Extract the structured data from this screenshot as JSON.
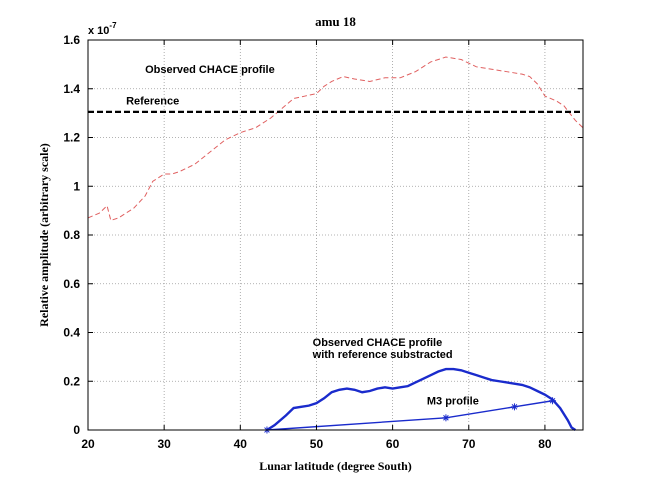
{
  "chart_data": {
    "type": "line",
    "title": "amu 18",
    "xlabel": "Lunar latitude (degree South)",
    "ylabel": "Relative amplitude (arbitrary scale)",
    "y_multiplier": "x 10",
    "y_exponent": "-7",
    "xlim": [
      20,
      85
    ],
    "ylim": [
      0,
      1.6
    ],
    "x_ticks": [
      20,
      30,
      40,
      50,
      60,
      70,
      80
    ],
    "y_ticks": [
      0,
      0.2,
      0.4,
      0.6,
      0.8,
      1,
      1.2,
      1.4,
      1.6
    ],
    "y_tick_labels": [
      "0",
      "0.2",
      "0.4",
      "0.6",
      "0.8",
      "1",
      "1.2",
      "1.4",
      "1.6"
    ],
    "grid": true,
    "colors": {
      "observed": "#e06060",
      "reference": "#000000",
      "subtracted": "#1a2bcc",
      "m3": "#1a2bcc"
    },
    "series": [
      {
        "key": "observed",
        "style": "dashed",
        "points": [
          [
            20,
            0.87
          ],
          [
            21.5,
            0.89
          ],
          [
            22.5,
            0.92
          ],
          [
            23,
            0.86
          ],
          [
            24,
            0.87
          ],
          [
            26,
            0.91
          ],
          [
            27.5,
            0.96
          ],
          [
            28.5,
            1.02
          ],
          [
            30,
            1.05
          ],
          [
            31,
            1.05
          ],
          [
            32,
            1.06
          ],
          [
            34,
            1.09
          ],
          [
            36,
            1.14
          ],
          [
            38,
            1.19
          ],
          [
            40,
            1.22
          ],
          [
            42,
            1.24
          ],
          [
            44,
            1.28
          ],
          [
            45.5,
            1.32
          ],
          [
            47,
            1.36
          ],
          [
            48.5,
            1.37
          ],
          [
            50,
            1.38
          ],
          [
            51,
            1.41
          ],
          [
            52,
            1.43
          ],
          [
            53.5,
            1.45
          ],
          [
            55,
            1.44
          ],
          [
            57,
            1.43
          ],
          [
            59,
            1.445
          ],
          [
            61,
            1.445
          ],
          [
            63,
            1.47
          ],
          [
            65,
            1.51
          ],
          [
            67,
            1.53
          ],
          [
            69,
            1.52
          ],
          [
            71,
            1.49
          ],
          [
            73,
            1.48
          ],
          [
            75,
            1.47
          ],
          [
            77,
            1.46
          ],
          [
            78,
            1.45
          ],
          [
            79,
            1.42
          ],
          [
            80,
            1.37
          ],
          [
            81.5,
            1.35
          ],
          [
            82.5,
            1.33
          ],
          [
            84,
            1.27
          ],
          [
            85,
            1.24
          ]
        ]
      },
      {
        "key": "reference",
        "style": "dashed",
        "points": [
          [
            20,
            1.305
          ],
          [
            85,
            1.305
          ]
        ]
      },
      {
        "key": "subtracted",
        "style": "solid",
        "points": [
          [
            43.5,
            0.0
          ],
          [
            44.5,
            0.02
          ],
          [
            46,
            0.06
          ],
          [
            47,
            0.09
          ],
          [
            48,
            0.095
          ],
          [
            49,
            0.1
          ],
          [
            50,
            0.11
          ],
          [
            51,
            0.13
          ],
          [
            52,
            0.155
          ],
          [
            53,
            0.165
          ],
          [
            54,
            0.17
          ],
          [
            55,
            0.165
          ],
          [
            56,
            0.155
          ],
          [
            57,
            0.16
          ],
          [
            58,
            0.17
          ],
          [
            59,
            0.175
          ],
          [
            60,
            0.17
          ],
          [
            61,
            0.175
          ],
          [
            62,
            0.18
          ],
          [
            63,
            0.195
          ],
          [
            64,
            0.21
          ],
          [
            65,
            0.225
          ],
          [
            66,
            0.24
          ],
          [
            67,
            0.25
          ],
          [
            68,
            0.25
          ],
          [
            69,
            0.245
          ],
          [
            70,
            0.235
          ],
          [
            71,
            0.225
          ],
          [
            72,
            0.215
          ],
          [
            73,
            0.205
          ],
          [
            74,
            0.2
          ],
          [
            75,
            0.195
          ],
          [
            76,
            0.19
          ],
          [
            77,
            0.185
          ],
          [
            78,
            0.175
          ],
          [
            79,
            0.16
          ],
          [
            80,
            0.145
          ],
          [
            81,
            0.125
          ],
          [
            82,
            0.09
          ],
          [
            83,
            0.04
          ],
          [
            83.5,
            0.01
          ],
          [
            84,
            0.0
          ]
        ]
      },
      {
        "key": "m3",
        "style": "solid",
        "marker": "star",
        "points": [
          [
            43.5,
            0.0
          ],
          [
            67,
            0.05
          ],
          [
            76,
            0.095
          ],
          [
            81,
            0.12
          ]
        ]
      }
    ],
    "annotations": [
      {
        "key": "observed",
        "text": "Observed CHACE profile",
        "x": 27.5,
        "y": 1.465
      },
      {
        "key": "reference",
        "text": "Reference",
        "x": 25,
        "y": 1.335
      },
      {
        "key": "subtracted_1",
        "text": "Observed CHACE profile",
        "x": 49.5,
        "y": 0.345
      },
      {
        "key": "subtracted_2",
        "text": "with reference substracted",
        "x": 49.5,
        "y": 0.295
      },
      {
        "key": "m3",
        "text": "M3 profile",
        "x": 64.5,
        "y": 0.105
      }
    ]
  }
}
